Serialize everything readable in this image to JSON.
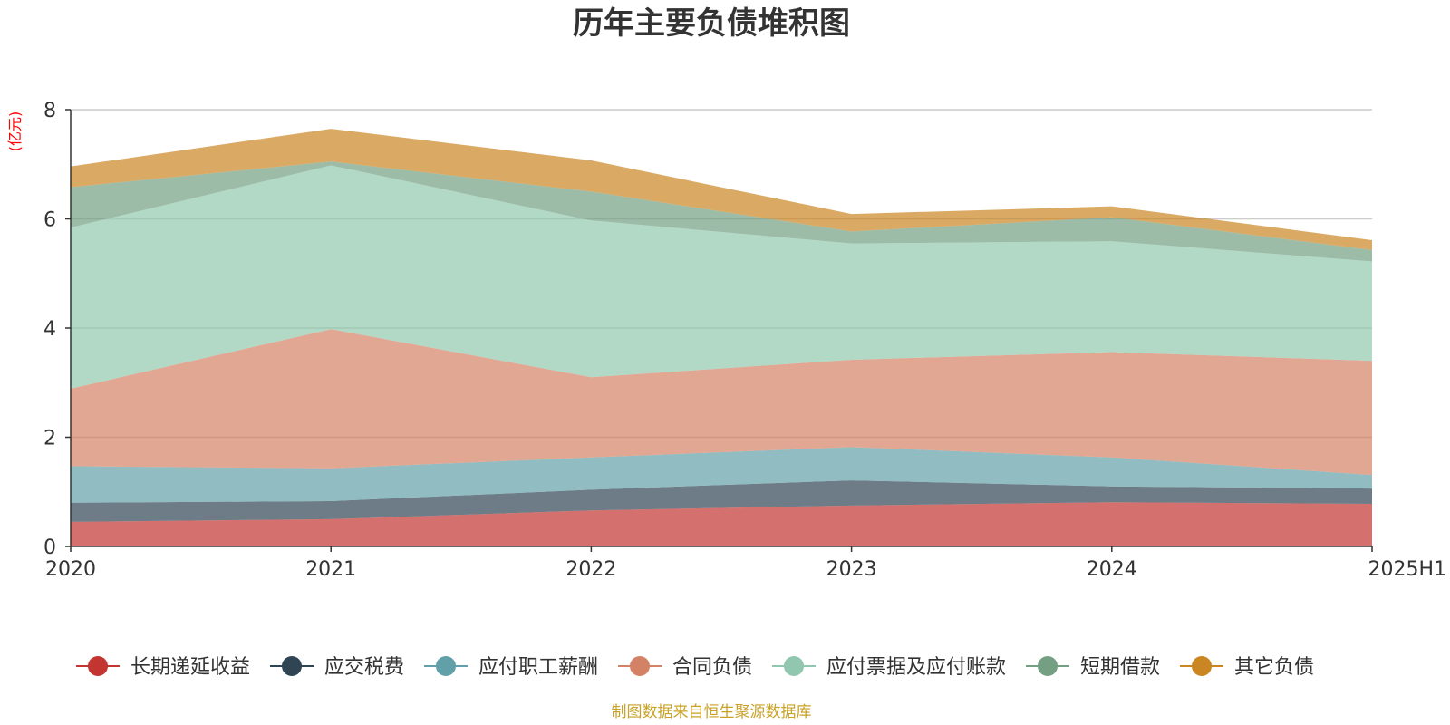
{
  "chart_data": {
    "type": "area",
    "stacked": true,
    "title": "历年主要负债堆积图",
    "ylabel": "(亿元)",
    "xlabel": "",
    "categories": [
      "2020",
      "2021",
      "2022",
      "2023",
      "2024",
      "2025H1"
    ],
    "ylim": [
      0,
      8
    ],
    "yticks": [
      0,
      2,
      4,
      6,
      8
    ],
    "grid": true,
    "legend_position": "bottom",
    "series": [
      {
        "name": "长期递延收益",
        "color": "#c23531",
        "values": [
          0.45,
          0.5,
          0.66,
          0.75,
          0.81,
          0.78
        ]
      },
      {
        "name": "应交税费",
        "color": "#2f4554",
        "values": [
          0.35,
          0.33,
          0.38,
          0.46,
          0.29,
          0.28
        ]
      },
      {
        "name": "应付职工薪酬",
        "color": "#61a0a8",
        "values": [
          0.67,
          0.6,
          0.59,
          0.61,
          0.53,
          0.25
        ]
      },
      {
        "name": "合同负债",
        "color": "#d48265",
        "values": [
          1.42,
          2.55,
          1.47,
          1.6,
          1.93,
          2.09
        ]
      },
      {
        "name": "应付票据及应付账款",
        "color": "#91c7ae",
        "values": [
          2.95,
          3.0,
          2.87,
          2.13,
          2.03,
          1.82
        ]
      },
      {
        "name": "短期借款",
        "color": "#749f83",
        "values": [
          0.74,
          0.07,
          0.53,
          0.22,
          0.44,
          0.21
        ]
      },
      {
        "name": "其它负债",
        "color": "#ca8622",
        "values": [
          0.38,
          0.6,
          0.57,
          0.32,
          0.2,
          0.18
        ]
      }
    ],
    "source": "制图数据来自恒生聚源数据库"
  }
}
